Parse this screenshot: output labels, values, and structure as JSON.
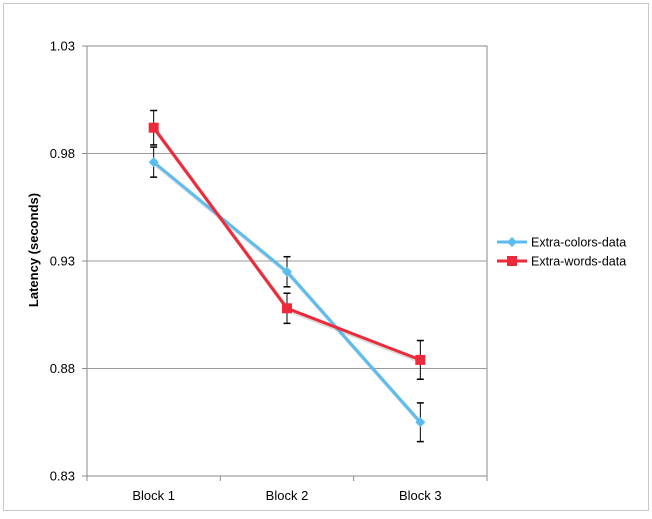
{
  "chart_data": {
    "type": "line",
    "title": "",
    "xlabel": "",
    "ylabel": "Latency (seconds)",
    "ylim": [
      0.83,
      1.03
    ],
    "yticks": [
      "0.83",
      "0.88",
      "0.93",
      "0.98",
      "1.03"
    ],
    "categories": [
      "Block 1",
      "Block 2",
      "Block 3"
    ],
    "grid": "horizontal",
    "legend_position": "right",
    "series": [
      {
        "name": "Extra-colors-data",
        "color": "#5bbcf0",
        "marker": "diamond",
        "values": [
          0.976,
          0.925,
          0.855
        ],
        "error": [
          0.007,
          0.007,
          0.009
        ]
      },
      {
        "name": "Extra-words-data",
        "color": "#ee2a3a",
        "marker": "square",
        "values": [
          0.992,
          0.908,
          0.884
        ],
        "error": [
          0.008,
          0.007,
          0.009
        ]
      }
    ]
  }
}
